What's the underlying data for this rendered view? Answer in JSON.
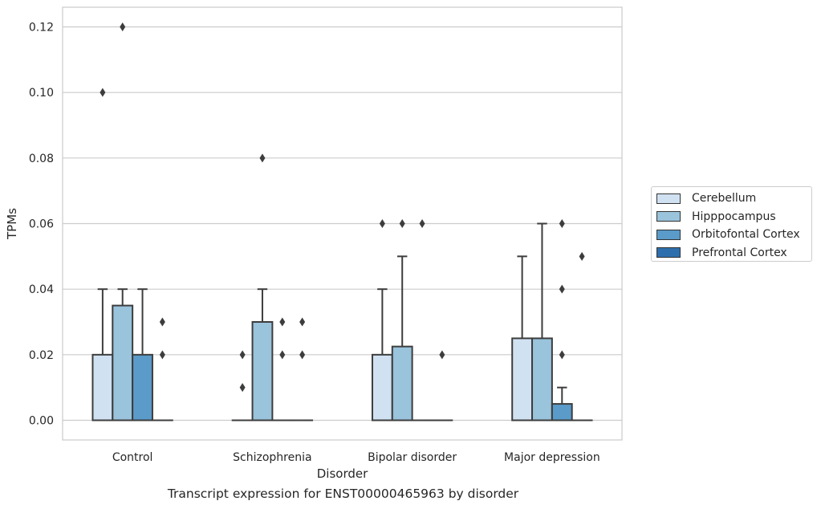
{
  "chart_data": {
    "type": "box",
    "caption": "Transcript expression for ENST00000465963 by disorder",
    "xlabel": "Disorder",
    "ylabel": "TPMs",
    "ylim": [
      -0.006,
      0.126
    ],
    "yticks": [
      "0.00",
      "0.02",
      "0.04",
      "0.06",
      "0.08",
      "0.10",
      "0.12"
    ],
    "ytick_values": [
      0,
      0.02,
      0.04,
      0.06,
      0.08,
      0.1,
      0.12
    ],
    "grid": "horizontal",
    "legend_placement": "center-right outside",
    "categories": [
      "Control",
      "Schizophrenia",
      "Bipolar disorder",
      "Major depression"
    ],
    "series": [
      {
        "name": "Cerebellum",
        "color": "#d0e1f2",
        "boxes": [
          {
            "q1": 0,
            "median": 0,
            "q3": 0.02,
            "whisker_low": 0,
            "whisker_high": 0.04,
            "outliers": [
              0.1
            ]
          },
          {
            "q1": 0,
            "median": 0,
            "q3": 0,
            "whisker_low": 0,
            "whisker_high": 0,
            "outliers": [
              0.01,
              0.02
            ]
          },
          {
            "q1": 0,
            "median": 0,
            "q3": 0.02,
            "whisker_low": 0,
            "whisker_high": 0.04,
            "outliers": [
              0.06
            ]
          },
          {
            "q1": 0,
            "median": 0,
            "q3": 0.025,
            "whisker_low": 0,
            "whisker_high": 0.05,
            "outliers": []
          }
        ]
      },
      {
        "name": "Hipppocampus",
        "color": "#9ac3dc",
        "boxes": [
          {
            "q1": 0,
            "median": 0,
            "q3": 0.035,
            "whisker_low": 0,
            "whisker_high": 0.04,
            "outliers": [
              0.12
            ]
          },
          {
            "q1": 0,
            "median": 0,
            "q3": 0.03,
            "whisker_low": 0,
            "whisker_high": 0.04,
            "outliers": [
              0.08
            ]
          },
          {
            "q1": 0,
            "median": 0,
            "q3": 0.0225,
            "whisker_low": 0,
            "whisker_high": 0.05,
            "outliers": [
              0.06
            ]
          },
          {
            "q1": 0,
            "median": 0,
            "q3": 0.025,
            "whisker_low": 0,
            "whisker_high": 0.06,
            "outliers": []
          }
        ]
      },
      {
        "name": "Orbitofontal Cortex",
        "color": "#5a9bc9",
        "boxes": [
          {
            "q1": 0,
            "median": 0,
            "q3": 0.02,
            "whisker_low": 0,
            "whisker_high": 0.04,
            "outliers": []
          },
          {
            "q1": 0,
            "median": 0,
            "q3": 0,
            "whisker_low": 0,
            "whisker_high": 0,
            "outliers": [
              0.02,
              0.03
            ]
          },
          {
            "q1": 0,
            "median": 0,
            "q3": 0,
            "whisker_low": 0,
            "whisker_high": 0,
            "outliers": [
              0.06
            ]
          },
          {
            "q1": 0,
            "median": 0,
            "q3": 0.005,
            "whisker_low": 0,
            "whisker_high": 0.01,
            "outliers": [
              0.02,
              0.04,
              0.06
            ]
          }
        ]
      },
      {
        "name": "Prefrontal Cortex",
        "color": "#2d6fac",
        "boxes": [
          {
            "q1": 0,
            "median": 0,
            "q3": 0,
            "whisker_low": 0,
            "whisker_high": 0,
            "outliers": [
              0.02,
              0.03
            ]
          },
          {
            "q1": 0,
            "median": 0,
            "q3": 0,
            "whisker_low": 0,
            "whisker_high": 0,
            "outliers": [
              0.02,
              0.03
            ]
          },
          {
            "q1": 0,
            "median": 0,
            "q3": 0,
            "whisker_low": 0,
            "whisker_high": 0,
            "outliers": [
              0.02
            ]
          },
          {
            "q1": 0,
            "median": 0,
            "q3": 0,
            "whisker_low": 0,
            "whisker_high": 0,
            "outliers": [
              0.05
            ]
          }
        ]
      }
    ]
  }
}
